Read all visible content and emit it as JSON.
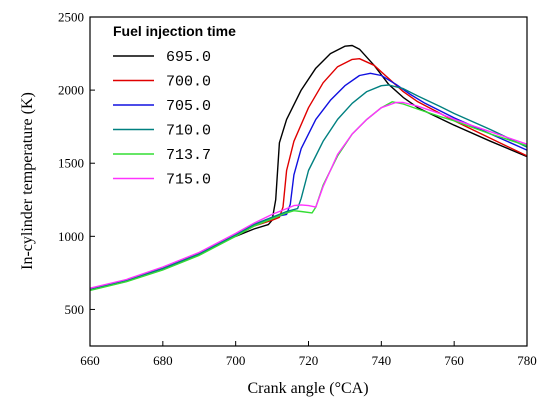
{
  "chart_data": {
    "type": "line",
    "xlabel": "Crank angle (°CA)",
    "ylabel": "In-cylinder temperature (K)",
    "xlim": [
      660,
      780
    ],
    "ylim": [
      250,
      2500
    ],
    "xticks": [
      660,
      680,
      700,
      720,
      740,
      760,
      780
    ],
    "yticks": [
      500,
      1000,
      1500,
      2000,
      2500
    ],
    "xtick_labels": [
      "660",
      "680",
      "700",
      "720",
      "740",
      "760",
      "780"
    ],
    "ytick_labels": [
      "500",
      "1000",
      "1500",
      "2000",
      "2500"
    ],
    "legend_title": "Fuel injection time",
    "legend_position": "top-left",
    "series": [
      {
        "name": "695.0",
        "color": "#000000",
        "x": [
          660,
          670,
          680,
          690,
          700,
          705,
          709,
          710,
          711,
          712,
          714,
          718,
          722,
          726,
          730,
          732,
          734,
          738,
          742,
          746,
          750,
          760,
          770,
          780
        ],
        "y": [
          640,
          700,
          780,
          880,
          1000,
          1050,
          1080,
          1110,
          1250,
          1640,
          1800,
          2000,
          2150,
          2250,
          2300,
          2305,
          2280,
          2170,
          2040,
          1950,
          1880,
          1760,
          1650,
          1545
        ]
      },
      {
        "name": "700.0",
        "color": "#e00000",
        "x": [
          660,
          670,
          680,
          690,
          700,
          705,
          710,
          712,
          713,
          714,
          716,
          720,
          724,
          728,
          732,
          734,
          738,
          742,
          746,
          750,
          760,
          770,
          780
        ],
        "y": [
          640,
          700,
          780,
          880,
          1005,
          1070,
          1110,
          1130,
          1200,
          1450,
          1650,
          1880,
          2050,
          2160,
          2210,
          2215,
          2170,
          2080,
          1990,
          1920,
          1790,
          1670,
          1550
        ]
      },
      {
        "name": "705.0",
        "color": "#1010e0",
        "x": [
          660,
          670,
          680,
          690,
          700,
          705,
          710,
          714,
          715,
          716,
          718,
          722,
          726,
          730,
          734,
          737,
          740,
          744,
          748,
          752,
          760,
          770,
          780
        ],
        "y": [
          640,
          700,
          780,
          880,
          1010,
          1080,
          1130,
          1150,
          1220,
          1420,
          1600,
          1800,
          1930,
          2030,
          2100,
          2115,
          2100,
          2040,
          1970,
          1910,
          1810,
          1700,
          1590
        ]
      },
      {
        "name": "710.0",
        "color": "#008080",
        "x": [
          660,
          670,
          680,
          690,
          700,
          705,
          710,
          714,
          717,
          718,
          720,
          724,
          728,
          732,
          736,
          740,
          742,
          746,
          750,
          756,
          760,
          770,
          780
        ],
        "y": [
          640,
          700,
          780,
          880,
          1010,
          1080,
          1130,
          1170,
          1190,
          1260,
          1450,
          1650,
          1800,
          1910,
          1990,
          2030,
          2035,
          2010,
          1960,
          1890,
          1840,
          1730,
          1610
        ]
      },
      {
        "name": "713.7",
        "color": "#33dd33",
        "x": [
          660,
          670,
          680,
          690,
          700,
          705,
          710,
          714,
          716,
          718,
          721,
          722,
          724,
          728,
          732,
          736,
          740,
          743,
          746,
          750,
          756,
          760,
          770,
          780
        ],
        "y": [
          630,
          690,
          770,
          870,
          1000,
          1070,
          1120,
          1160,
          1175,
          1170,
          1160,
          1200,
          1350,
          1550,
          1700,
          1800,
          1880,
          1920,
          1905,
          1870,
          1820,
          1790,
          1700,
          1620
        ]
      },
      {
        "name": "715.0",
        "color": "#ff33ff",
        "x": [
          660,
          670,
          680,
          690,
          700,
          705,
          710,
          714,
          716,
          718,
          720,
          722,
          724,
          728,
          732,
          736,
          740,
          744,
          746,
          750,
          756,
          760,
          770,
          780
        ],
        "y": [
          645,
          705,
          790,
          890,
          1020,
          1090,
          1150,
          1190,
          1210,
          1215,
          1210,
          1200,
          1340,
          1560,
          1700,
          1800,
          1880,
          1915,
          1915,
          1890,
          1840,
          1800,
          1715,
          1630
        ]
      }
    ]
  }
}
